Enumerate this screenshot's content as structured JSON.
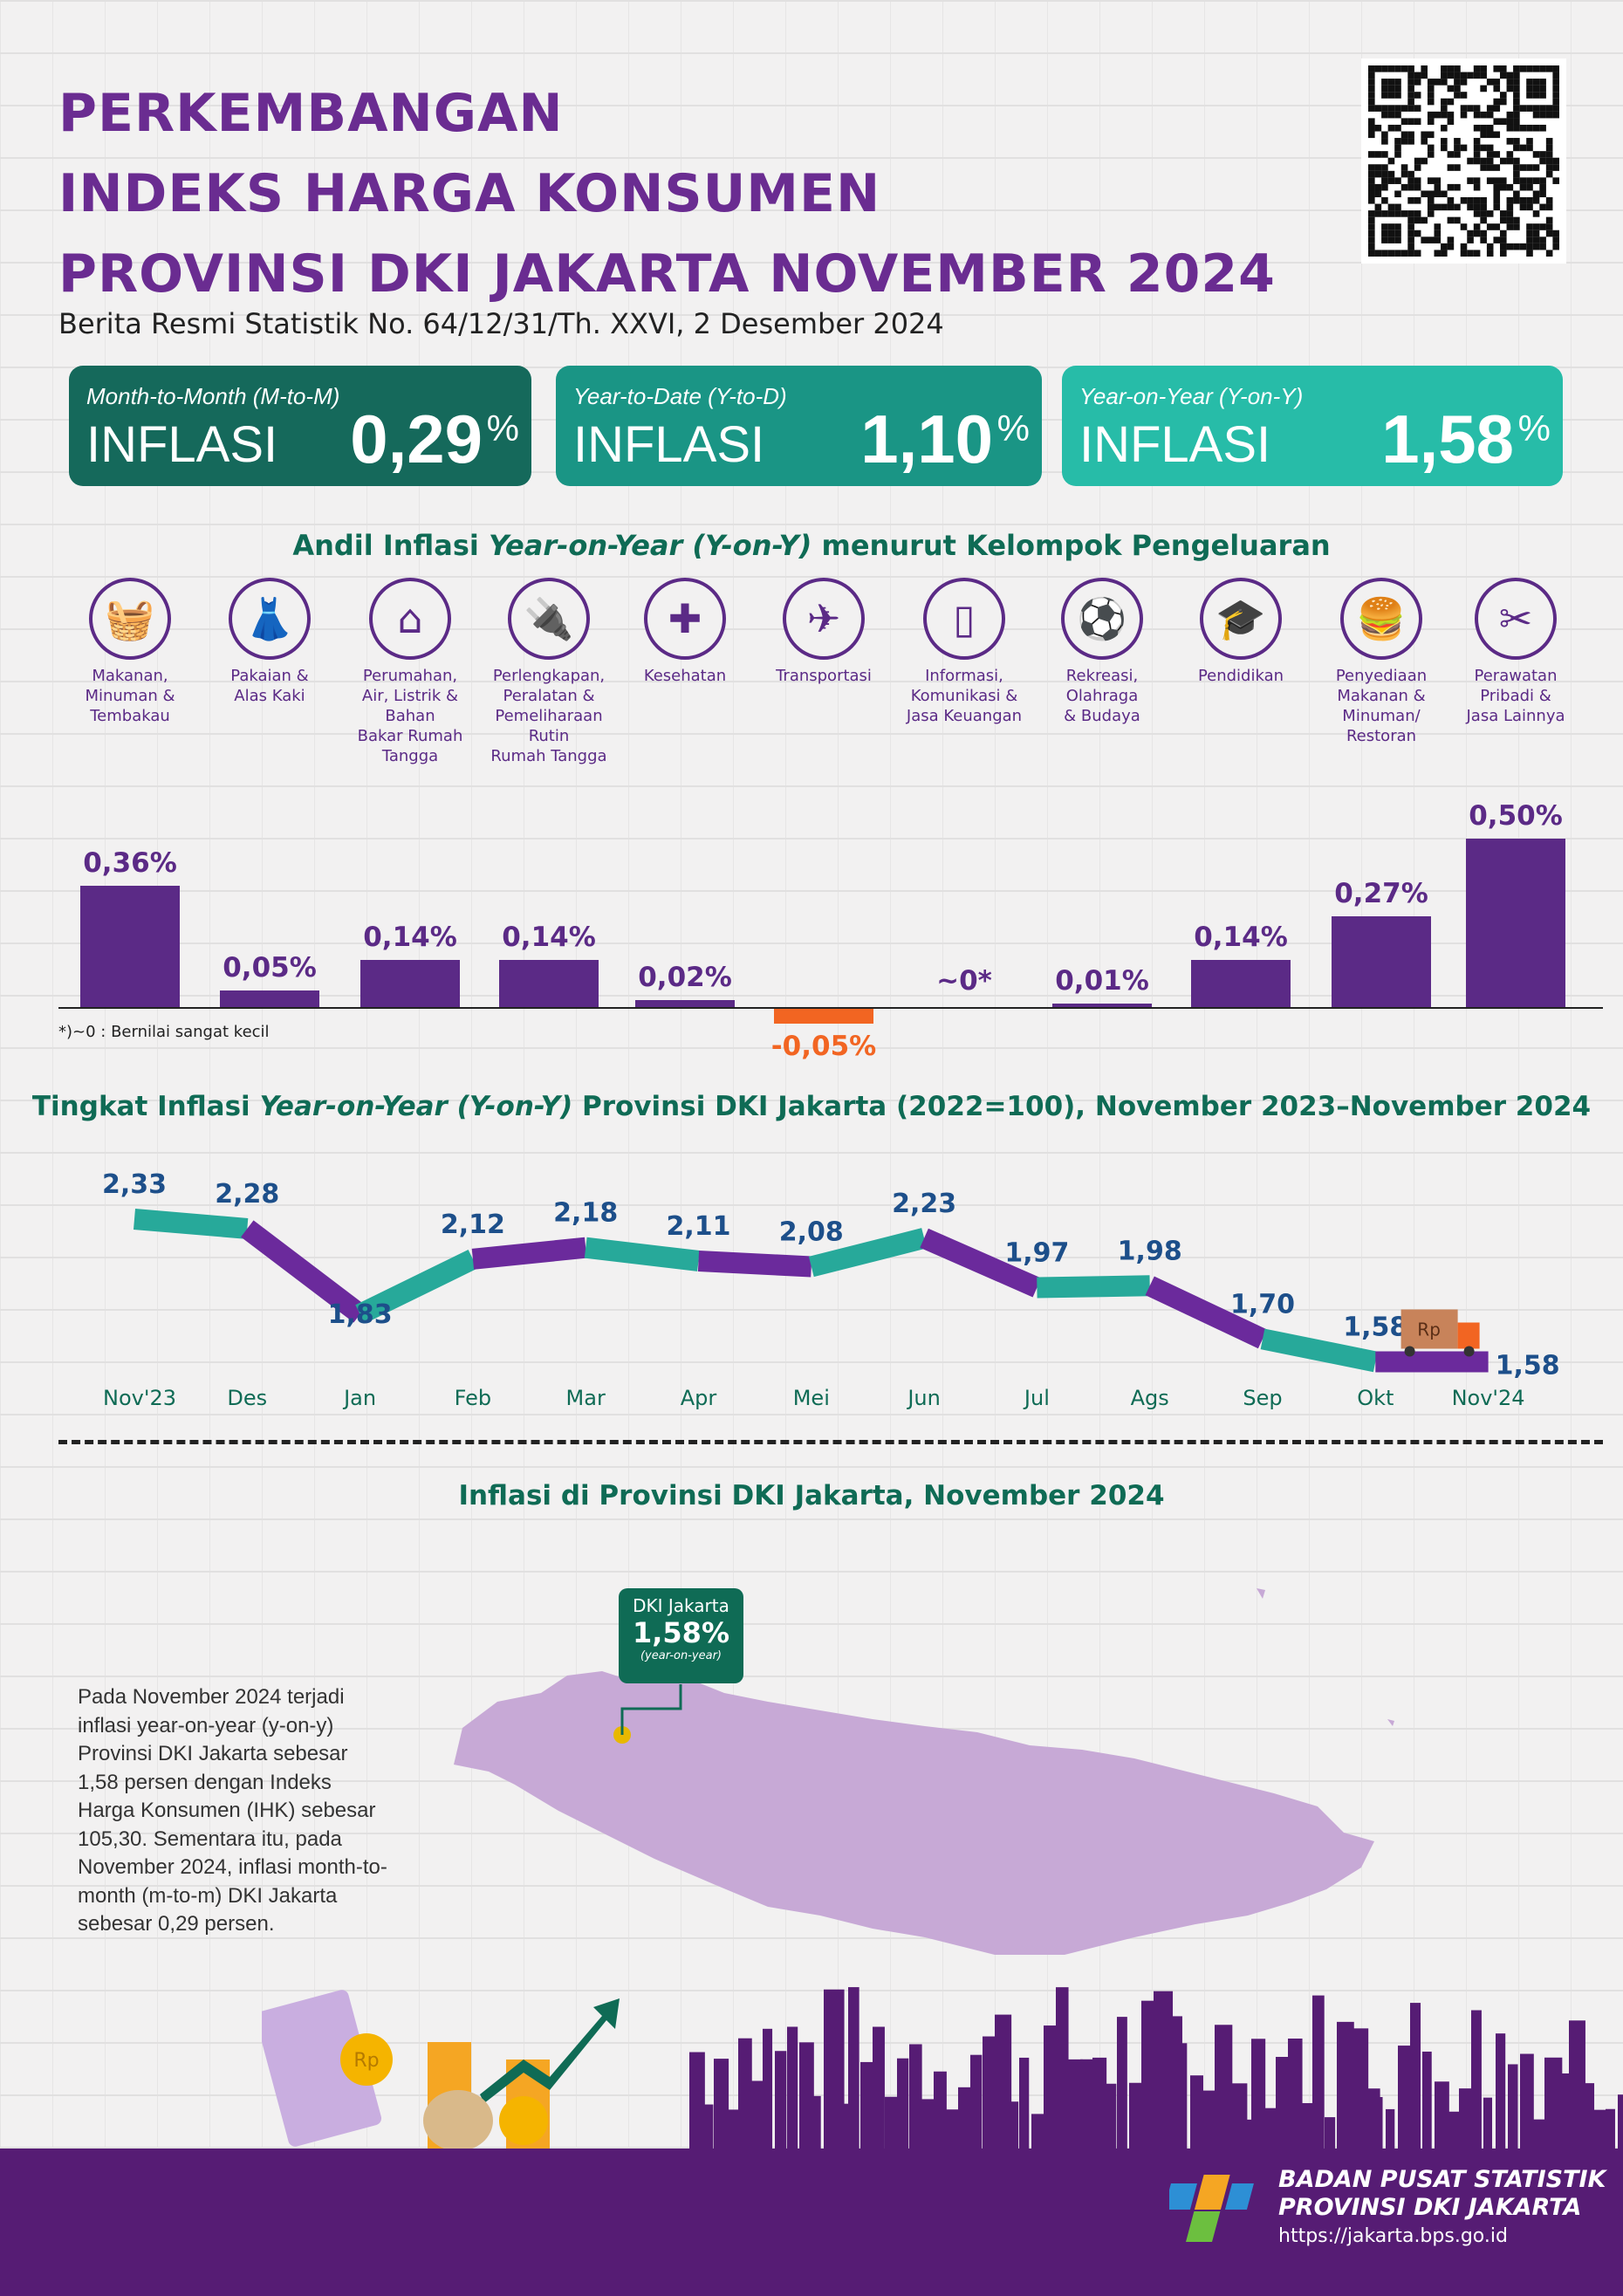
{
  "header": {
    "title_lines": [
      "PERKEMBANGAN",
      "INDEKS HARGA KONSUMEN",
      "PROVINSI DKI JAKARTA NOVEMBER 2024"
    ],
    "subtitle": "Berita Resmi Statistik No. 64/12/31/Th. XXVI, 2 Desember 2024"
  },
  "cards": [
    {
      "label": "Month-to-Month (M-to-M)",
      "word": "INFLASI",
      "value": "0,29",
      "unit": "%",
      "color": "#15695b"
    },
    {
      "label": "Year-to-Date (Y-to-D)",
      "word": "INFLASI",
      "value": "1,10",
      "unit": "%",
      "color": "#1a9585"
    },
    {
      "label": "Year-on-Year (Y-on-Y)",
      "word": "INFLASI",
      "value": "1,58",
      "unit": "%",
      "color": "#27bca8"
    }
  ],
  "chart_data": [
    {
      "type": "bar",
      "title_parts": [
        "Andil Inflasi ",
        "Year-on-Year (Y-on-Y)",
        " menurut Kelompok Pengeluaran"
      ],
      "categories": [
        "Makanan, Minuman & Tembakau",
        "Pakaian & Alas Kaki",
        "Perumahan, Air, Listrik & Bahan Bakar Rumah Tangga",
        "Perlengkapan, Peralatan & Pemeliharaan Rutin Rumah Tangga",
        "Kesehatan",
        "Transportasi",
        "Informasi, Komunikasi & Jasa Keuangan",
        "Rekreasi, Olahraga & Budaya",
        "Pendidikan",
        "Penyediaan Makanan & Minuman/ Restoran",
        "Perawatan Pribadi & Jasa Lainnya"
      ],
      "category_lines": [
        [
          "Makanan,",
          "Minuman &",
          "Tembakau"
        ],
        [
          "Pakaian &",
          "Alas Kaki"
        ],
        [
          "Perumahan,",
          "Air, Listrik &",
          "Bahan",
          "Bakar Rumah",
          "Tangga"
        ],
        [
          "Perlengkapan,",
          "Peralatan &",
          "Pemeliharaan",
          "Rutin",
          "Rumah Tangga"
        ],
        [
          "Kesehatan"
        ],
        [
          "Transportasi"
        ],
        [
          "Informasi,",
          "Komunikasi &",
          "Jasa Keuangan"
        ],
        [
          "Rekreasi,",
          "Olahraga",
          "& Budaya"
        ],
        [
          "Pendidikan"
        ],
        [
          "Penyediaan",
          "Makanan &",
          "Minuman/",
          "Restoran"
        ],
        [
          "Perawatan",
          "Pribadi &",
          "Jasa Lainnya"
        ]
      ],
      "icons": [
        "grocery-basket-icon",
        "dress-icon",
        "house-icon",
        "electric-plug-icon",
        "first-aid-kit-icon",
        "airplane-icon",
        "smartphone-icon",
        "soccer-player-icon",
        "graduation-cap-icon",
        "burger-drink-icon",
        "scissors-comb-icon"
      ],
      "icon_glyphs": [
        "🧺",
        "👗",
        "⌂",
        "🔌",
        "✚",
        "✈",
        "▯",
        "⚽",
        "🎓",
        "🍔",
        "✂"
      ],
      "values": [
        0.36,
        0.05,
        0.14,
        0.14,
        0.02,
        -0.05,
        0,
        0.01,
        0.14,
        0.27,
        0.5
      ],
      "labels": [
        "0,36%",
        "0,05%",
        "0,14%",
        "0,14%",
        "0,02%",
        "-0,05%",
        "~0*",
        "0,01%",
        "0,14%",
        "0,27%",
        "0,50%"
      ],
      "footnote": "*)~0 : Bernilai sangat kecil",
      "colors": {
        "positive": "#5b2a86",
        "negative": "#f26522"
      }
    },
    {
      "type": "line",
      "title_parts": [
        "Tingkat Inflasi ",
        "Year-on-Year (Y-on-Y)",
        " Provinsi DKI Jakarta (2022=100), November 2023–November 2024"
      ],
      "categories": [
        "Nov'23",
        "Des",
        "Jan",
        "Feb",
        "Mar",
        "Apr",
        "Mei",
        "Jun",
        "Jul",
        "Ags",
        "Sep",
        "Okt",
        "Nov'24"
      ],
      "values": [
        2.33,
        2.28,
        1.83,
        2.12,
        2.18,
        2.11,
        2.08,
        2.23,
        1.97,
        1.98,
        1.7,
        1.58,
        1.58
      ],
      "labels": [
        "2,33",
        "2,28",
        "1,83",
        "2,12",
        "2,18",
        "2,11",
        "2,08",
        "2,23",
        "1,97",
        "1,98",
        "1,70",
        "1,58",
        "1,58"
      ],
      "colors": {
        "teal": "#27a99a",
        "purple": "#6b2a9c",
        "label": "#1d4f8a"
      }
    }
  ],
  "map": {
    "title": "Inflasi di Provinsi DKI Jakarta, November 2024",
    "callout_name": "DKI Jakarta",
    "callout_value": "1,58%",
    "callout_note": "(year-on-year)",
    "paragraph": "Pada November 2024 terjadi inflasi year-on-year (y-on-y) Provinsi DKI Jakarta sebesar 1,58 persen dengan Indeks Harga Konsumen (IHK) sebesar 105,30. Sementara itu, pada November 2024, inflasi month-to-month (m-to-m) DKI Jakarta sebesar 0,29 persen."
  },
  "footer": {
    "org_line1": "BADAN PUSAT STATISTIK",
    "org_line2": "PROVINSI DKI JAKARTA",
    "url": "https://jakarta.bps.go.id",
    "truck_label": "Rp",
    "coin_label": "Rp"
  }
}
